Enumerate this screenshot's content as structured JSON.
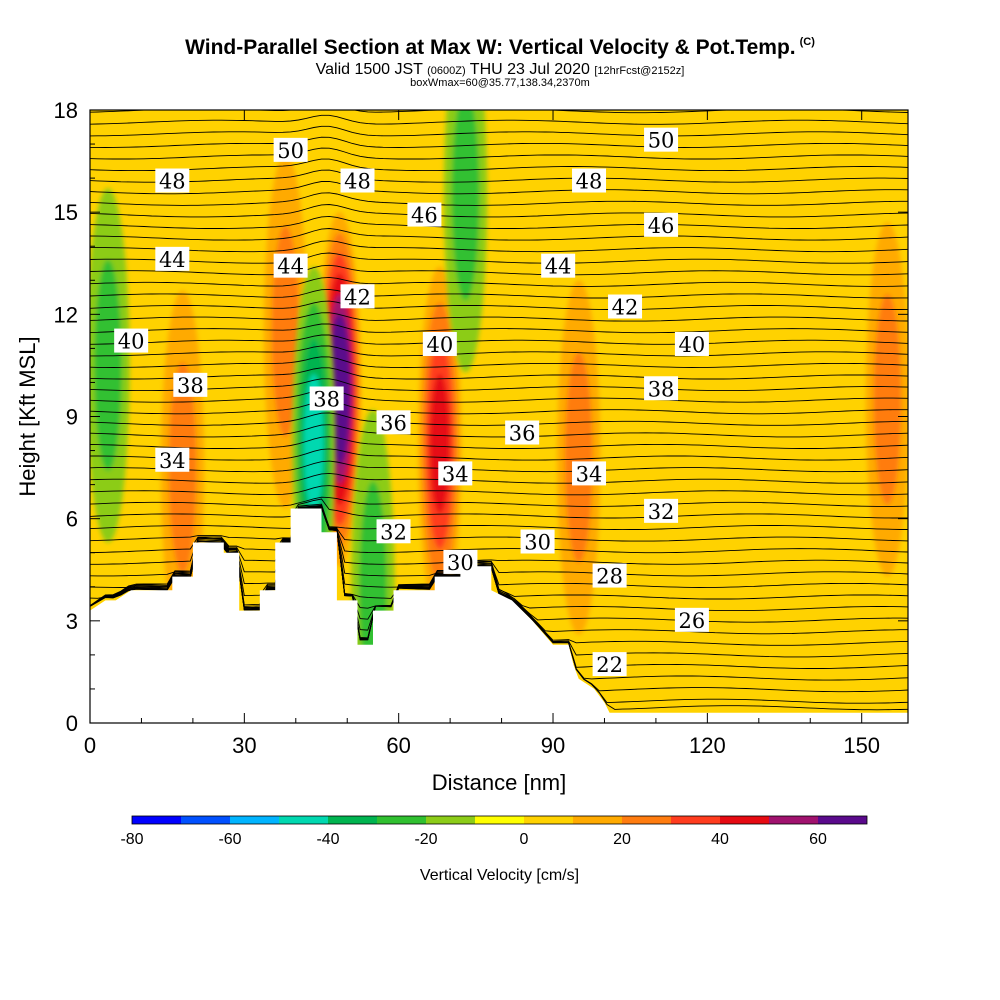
{
  "header": {
    "title": "Wind-Parallel Section at Max W: Vertical Velocity & Pot.Temp.",
    "copyright": "(C)",
    "valid_prefix": "Valid 1500 JST",
    "valid_utc": "(0600Z)",
    "valid_date": "THU 23 Jul 2020",
    "forecast": "[12hrFcst@2152z]",
    "box_info": "boxWmax=60@35.77,138.34,2370m"
  },
  "chart_data": {
    "type": "heatmap",
    "xlabel": "Distance [nm]",
    "ylabel": "Height [Kft MSL]",
    "xlim": [
      0,
      159
    ],
    "ylim": [
      0,
      18
    ],
    "x_ticks": [
      0,
      30,
      60,
      90,
      120,
      150
    ],
    "y_ticks": [
      0,
      3,
      6,
      9,
      12,
      15,
      18
    ],
    "colorbar": {
      "label": "Vertical Velocity [cm/s]",
      "ticks": [
        -80,
        -60,
        -40,
        -20,
        0,
        20,
        40,
        60
      ],
      "levels": [
        -80,
        -70,
        -60,
        -50,
        -40,
        -30,
        -20,
        -10,
        0,
        10,
        20,
        30,
        40,
        50,
        60,
        70
      ],
      "colors": [
        "#0000ff",
        "#0050ff",
        "#00b4ff",
        "#00d8b0",
        "#00b450",
        "#30c030",
        "#8ccc18",
        "#ffff00",
        "#ffd200",
        "#ffaa00",
        "#ff7c10",
        "#ff3c1e",
        "#e60a12",
        "#a0126e",
        "#5a0a8c"
      ]
    },
    "terrain_kft": [
      [
        0,
        3.3
      ],
      [
        3,
        3.6
      ],
      [
        5,
        3.6
      ],
      [
        8,
        3.9
      ],
      [
        16,
        3.9
      ],
      [
        16,
        4.3
      ],
      [
        20,
        4.3
      ],
      [
        20,
        5.3
      ],
      [
        26,
        5.3
      ],
      [
        26,
        5.0
      ],
      [
        29,
        5.0
      ],
      [
        29,
        3.3
      ],
      [
        33,
        3.3
      ],
      [
        33,
        3.9
      ],
      [
        36,
        3.9
      ],
      [
        36,
        5.3
      ],
      [
        39,
        5.3
      ],
      [
        39,
        6.3
      ],
      [
        45,
        6.3
      ],
      [
        45,
        5.6
      ],
      [
        48,
        5.6
      ],
      [
        48,
        3.6
      ],
      [
        52,
        3.6
      ],
      [
        52,
        2.3
      ],
      [
        55,
        2.3
      ],
      [
        55,
        3.3
      ],
      [
        59,
        3.3
      ],
      [
        59,
        3.9
      ],
      [
        67,
        3.9
      ],
      [
        67,
        4.3
      ],
      [
        72,
        4.3
      ],
      [
        72,
        4.6
      ],
      [
        78,
        4.6
      ],
      [
        78,
        3.9
      ],
      [
        82,
        3.6
      ],
      [
        86,
        3.0
      ],
      [
        90,
        2.3
      ],
      [
        93,
        2.3
      ],
      [
        94,
        1.7
      ],
      [
        95,
        1.3
      ],
      [
        98,
        1.0
      ],
      [
        100,
        0.6
      ],
      [
        101,
        0.3
      ],
      [
        159,
        0.3
      ]
    ],
    "updraft_cells": [
      {
        "x": 48.5,
        "z": 9.8,
        "w": 70
      },
      {
        "x": 68,
        "z": 8.2,
        "w": 40
      },
      {
        "x": 38,
        "z": 11.5,
        "w": 20
      },
      {
        "x": 95,
        "z": 7.8,
        "w": 20
      },
      {
        "x": 18,
        "z": 7.5,
        "w": 20
      },
      {
        "x": 155,
        "z": 9.5,
        "w": 20
      }
    ],
    "downdraft_cells": [
      {
        "x": 43.5,
        "z": 8.2,
        "w": -40
      },
      {
        "x": 3.5,
        "z": 10.5,
        "w": -20
      },
      {
        "x": 73,
        "z": 15.5,
        "w": -20
      },
      {
        "x": 55,
        "z": 4.0,
        "w": -20
      }
    ],
    "theta_labels": [
      {
        "text": "50",
        "x": 39,
        "z": 16.8
      },
      {
        "text": "48",
        "x": 16,
        "z": 15.9
      },
      {
        "text": "48",
        "x": 52,
        "z": 15.9
      },
      {
        "text": "46",
        "x": 65,
        "z": 14.9
      },
      {
        "text": "44",
        "x": 16,
        "z": 13.6
      },
      {
        "text": "44",
        "x": 39,
        "z": 13.4
      },
      {
        "text": "42",
        "x": 52,
        "z": 12.5
      },
      {
        "text": "40",
        "x": 8,
        "z": 11.2
      },
      {
        "text": "38",
        "x": 19.5,
        "z": 9.9
      },
      {
        "text": "38",
        "x": 46,
        "z": 9.5
      },
      {
        "text": "36",
        "x": 59,
        "z": 8.8
      },
      {
        "text": "34",
        "x": 16,
        "z": 7.7
      },
      {
        "text": "32",
        "x": 59,
        "z": 5.6
      },
      {
        "text": "50",
        "x": 111,
        "z": 17.1
      },
      {
        "text": "48",
        "x": 97,
        "z": 15.9
      },
      {
        "text": "46",
        "x": 111,
        "z": 14.6
      },
      {
        "text": "44",
        "x": 91,
        "z": 13.4
      },
      {
        "text": "42",
        "x": 104,
        "z": 12.2
      },
      {
        "text": "40",
        "x": 68,
        "z": 11.1
      },
      {
        "text": "40",
        "x": 117,
        "z": 11.1
      },
      {
        "text": "38",
        "x": 111,
        "z": 9.8
      },
      {
        "text": "36",
        "x": 84,
        "z": 8.5
      },
      {
        "text": "34",
        "x": 71,
        "z": 7.3
      },
      {
        "text": "34",
        "x": 97,
        "z": 7.3
      },
      {
        "text": "32",
        "x": 111,
        "z": 6.2
      },
      {
        "text": "30",
        "x": 87,
        "z": 5.3
      },
      {
        "text": "30",
        "x": 72,
        "z": 4.7
      },
      {
        "text": "28",
        "x": 101,
        "z": 4.3
      },
      {
        "text": "26",
        "x": 117,
        "z": 3.0
      },
      {
        "text": "22",
        "x": 101,
        "z": 1.7
      }
    ]
  }
}
